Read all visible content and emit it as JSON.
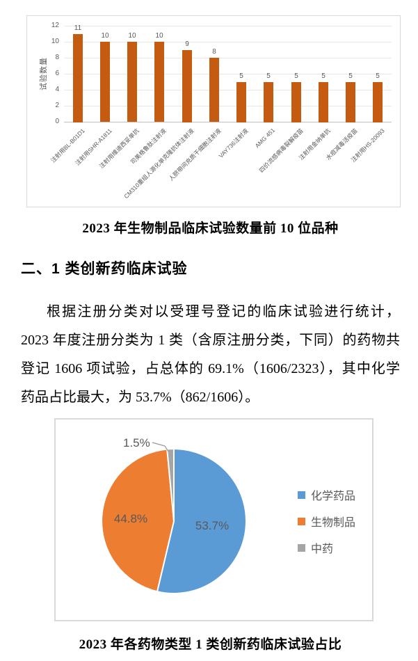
{
  "page": {
    "caption_bar_chart": "2023 年生物制品临床试验数量前 10 位品种",
    "section_heading": "二、1 类创新药临床试验",
    "paragraph_lines": [
      "根据注册分类对以受理号登记的临床试验进行统计，",
      "2023 年度注册分类为 1 类（含原注册分类，下同）的药物共",
      "登记 1606 项试验，占总体的 69.1%（1606/2323），其中化学",
      "药品占比最大，为 53.7%（862/1606）。"
    ],
    "caption_pie_chart": "2023 年各药物类型 1 类创新药临床试验占比"
  },
  "colors": {
    "bar": "#C55A11",
    "pie_blue": "#5B9BD5",
    "pie_orange": "#ED7D31",
    "pie_gray": "#A5A5A5",
    "chart_text": "#595959",
    "gridline": "#E7E7E7",
    "box_border": "#D9D9D9"
  },
  "chart_data": [
    {
      "type": "bar",
      "title": "2023 年生物制品临床试验数量前 10 位品种",
      "ylabel": "试验数量",
      "xlabel": "",
      "ylim": [
        0,
        12
      ],
      "ytick_step": 2,
      "grid": true,
      "bar_color": "#C55A11",
      "categories": [
        "注射用BL-B01D1",
        "注射用SHR-A1811",
        "注射用维迪西妥单抗",
        "司美格鲁肽注射液",
        "CM310重组人源化单克隆抗体注射液",
        "人脐带间充质干细胞注射液",
        "VAY736注射液",
        "AMG 451",
        "四价流感病毒裂解疫苗",
        "注射用金纳单抗",
        "水痘减毒活疫苗",
        "注射用HS-20093"
      ],
      "values": [
        11,
        10,
        10,
        10,
        9,
        8,
        5,
        5,
        5,
        5,
        5,
        5
      ]
    },
    {
      "type": "pie",
      "title": "2023 年各药物类型 1 类创新药临床试验占比",
      "labels": [
        "化学药品",
        "生物制品",
        "中药"
      ],
      "values": [
        53.7,
        44.8,
        1.5
      ],
      "value_labels": [
        "53.7%",
        "44.8%",
        "1.5%"
      ],
      "colors": [
        "#5B9BD5",
        "#ED7D31",
        "#A5A5A5"
      ],
      "legend_position": "right",
      "start_angle_deg_clockwise_from_top": 0
    }
  ]
}
